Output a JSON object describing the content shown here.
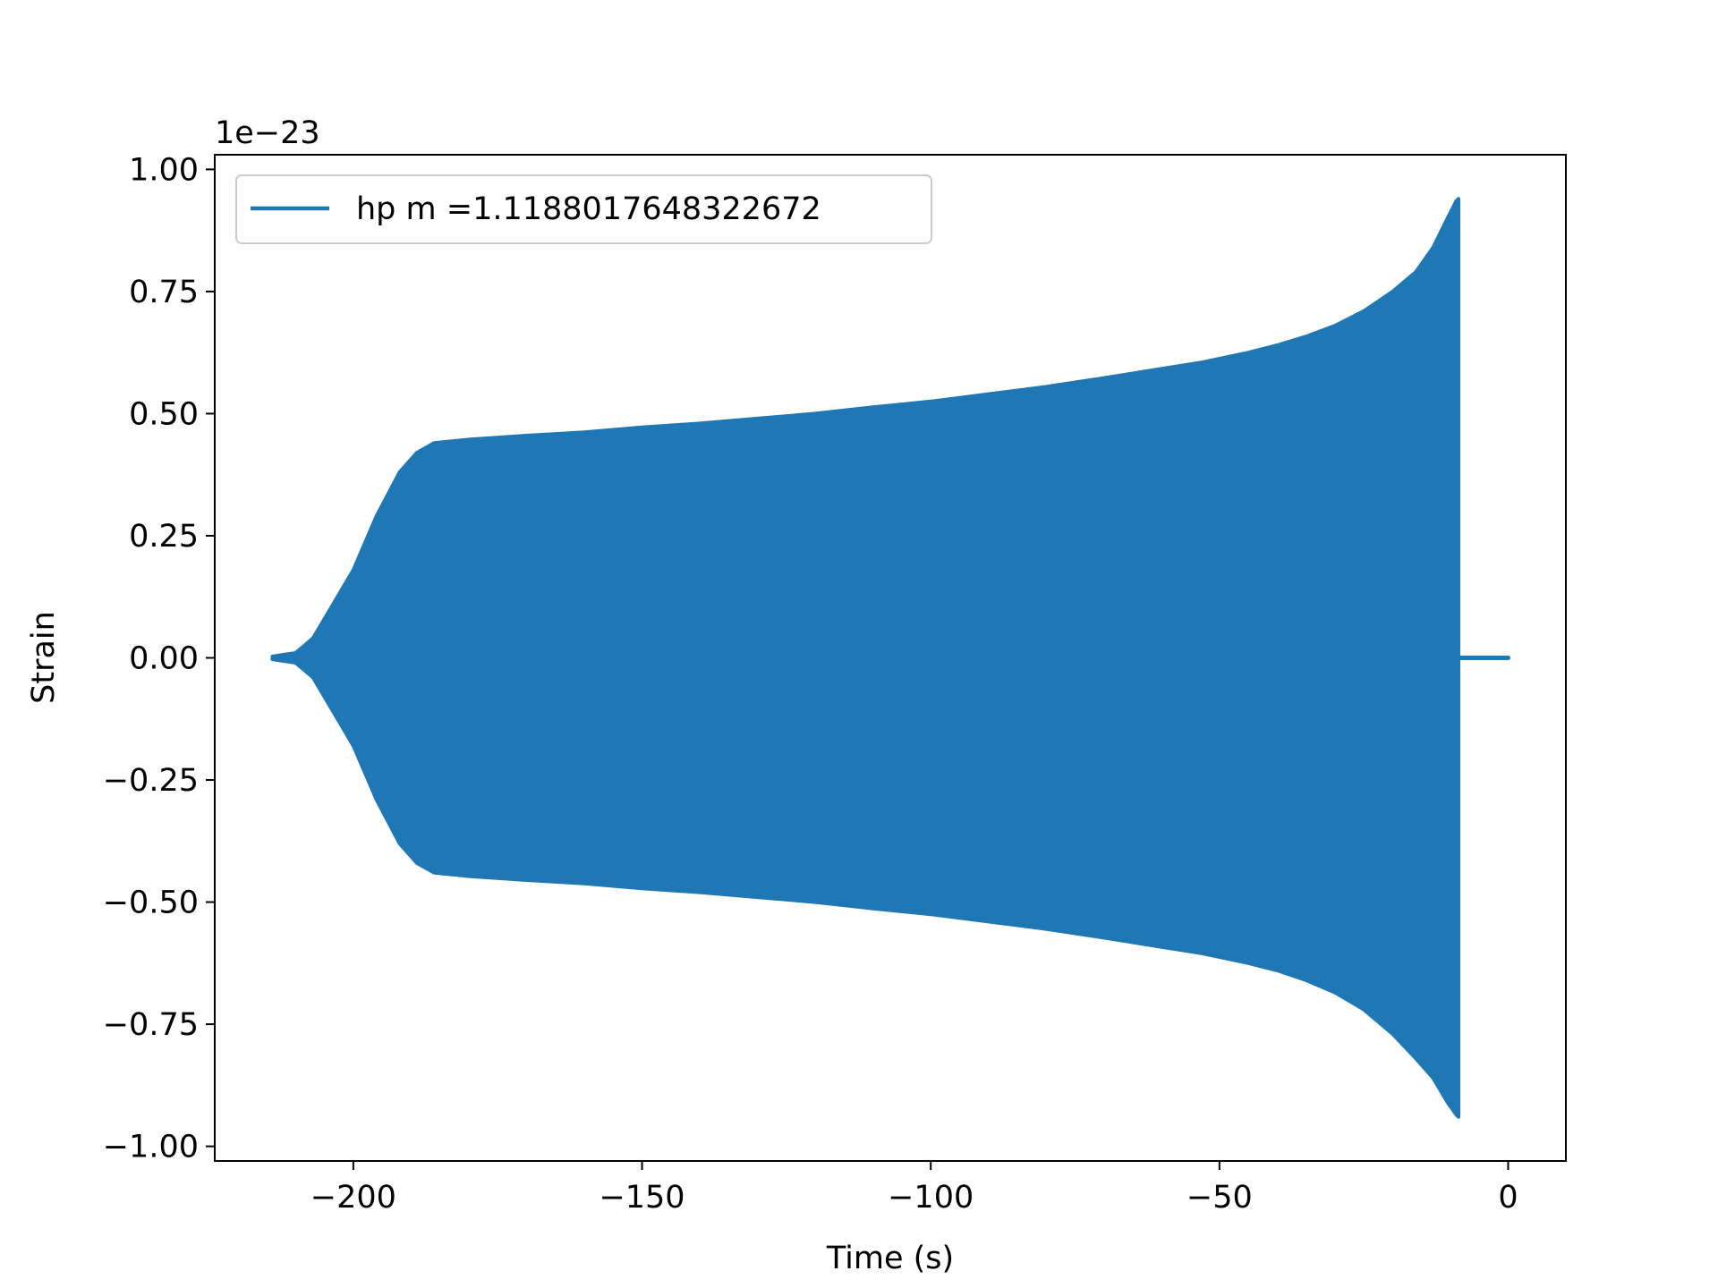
{
  "chart_data": {
    "type": "line",
    "xlabel": "Time (s)",
    "ylabel": "Strain",
    "y_offset_text": "1e−23",
    "xlim": [
      -224,
      10
    ],
    "ylim": [
      -1.03,
      1.03
    ],
    "x_ticks": [
      -200,
      -150,
      -100,
      -50,
      0
    ],
    "x_tick_labels": [
      "−200",
      "−150",
      "−100",
      "−50",
      "0"
    ],
    "y_ticks": [
      1.0,
      0.75,
      0.5,
      0.25,
      0.0,
      -0.25,
      -0.5,
      -0.75,
      -1.0
    ],
    "y_tick_labels": [
      "1.00",
      "0.75",
      "0.50",
      "0.25",
      "0.00",
      "−0.25",
      "−0.50",
      "−0.75",
      "−1.00"
    ],
    "grid": false,
    "legend_position": "top-left",
    "series": [
      {
        "name": "hp m =1.1188017648322672",
        "color": "#1f77b4",
        "envelope_upper": [
          [
            -214,
            0.003
          ],
          [
            -210,
            0.01
          ],
          [
            -207,
            0.04
          ],
          [
            -204,
            0.1
          ],
          [
            -200,
            0.18
          ],
          [
            -196,
            0.29
          ],
          [
            -192,
            0.38
          ],
          [
            -189,
            0.42
          ],
          [
            -186,
            0.44
          ],
          [
            -180,
            0.447
          ],
          [
            -170,
            0.455
          ],
          [
            -160,
            0.462
          ],
          [
            -150,
            0.472
          ],
          [
            -140,
            0.48
          ],
          [
            -130,
            0.49
          ],
          [
            -120,
            0.5
          ],
          [
            -110,
            0.513
          ],
          [
            -100,
            0.525
          ],
          [
            -90,
            0.54
          ],
          [
            -80,
            0.555
          ],
          [
            -70,
            0.573
          ],
          [
            -60,
            0.592
          ],
          [
            -53,
            0.605
          ],
          [
            -45,
            0.625
          ],
          [
            -40,
            0.64
          ],
          [
            -35,
            0.658
          ],
          [
            -30,
            0.68
          ],
          [
            -25,
            0.71
          ],
          [
            -20,
            0.75
          ],
          [
            -16,
            0.79
          ],
          [
            -13,
            0.84
          ],
          [
            -10.5,
            0.9
          ],
          [
            -9,
            0.935
          ],
          [
            -8.6,
            0.94
          ]
        ],
        "envelope_lower": [
          [
            -214,
            -0.003
          ],
          [
            -210,
            -0.01
          ],
          [
            -207,
            -0.04
          ],
          [
            -204,
            -0.1
          ],
          [
            -200,
            -0.18
          ],
          [
            -196,
            -0.29
          ],
          [
            -192,
            -0.38
          ],
          [
            -189,
            -0.42
          ],
          [
            -186,
            -0.44
          ],
          [
            -180,
            -0.447
          ],
          [
            -170,
            -0.455
          ],
          [
            -160,
            -0.462
          ],
          [
            -150,
            -0.472
          ],
          [
            -140,
            -0.48
          ],
          [
            -130,
            -0.49
          ],
          [
            -120,
            -0.5
          ],
          [
            -110,
            -0.513
          ],
          [
            -100,
            -0.525
          ],
          [
            -90,
            -0.54
          ],
          [
            -80,
            -0.555
          ],
          [
            -70,
            -0.573
          ],
          [
            -60,
            -0.592
          ],
          [
            -53,
            -0.605
          ],
          [
            -45,
            -0.625
          ],
          [
            -40,
            -0.64
          ],
          [
            -35,
            -0.66
          ],
          [
            -30,
            -0.685
          ],
          [
            -25,
            -0.72
          ],
          [
            -20,
            -0.77
          ],
          [
            -16,
            -0.82
          ],
          [
            -13,
            -0.86
          ],
          [
            -10.5,
            -0.91
          ],
          [
            -9,
            -0.935
          ],
          [
            -8.6,
            -0.94
          ]
        ],
        "tail": [
          [
            -8.6,
            0.0
          ],
          [
            0,
            0.0
          ]
        ],
        "start_x": -214
      }
    ]
  }
}
